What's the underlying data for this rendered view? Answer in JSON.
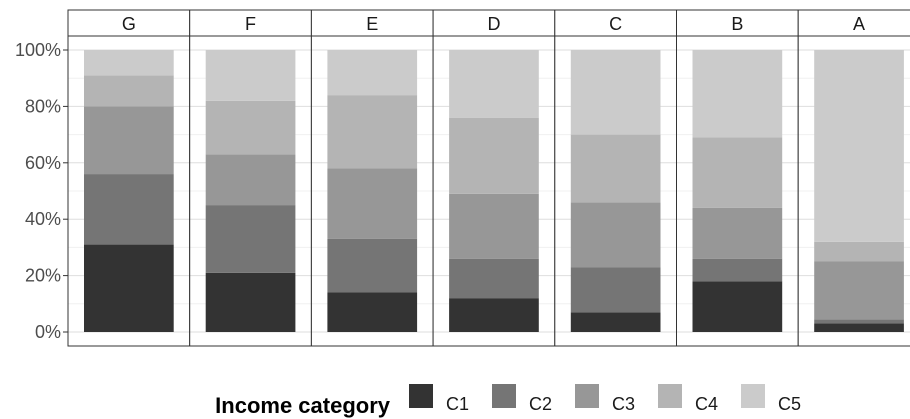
{
  "chart_data": {
    "type": "bar",
    "stacked": true,
    "facets": [
      "G",
      "F",
      "E",
      "D",
      "C",
      "B",
      "A"
    ],
    "y_ticks": [
      "0%",
      "20%",
      "40%",
      "60%",
      "80%",
      "100%"
    ],
    "ylim": [
      0,
      100
    ],
    "grid": true,
    "legend": {
      "title": "Income category",
      "placement": "bottom"
    },
    "series": [
      {
        "name": "C1",
        "color": "#333333",
        "values": [
          31,
          21,
          14,
          12,
          7,
          18,
          3
        ]
      },
      {
        "name": "C2",
        "color": "#757575",
        "values": [
          25,
          24,
          19,
          14,
          16,
          8,
          1.5
        ]
      },
      {
        "name": "C3",
        "color": "#979797",
        "values": [
          24,
          18,
          25,
          23,
          23,
          18,
          20.5
        ]
      },
      {
        "name": "C4",
        "color": "#b4b4b4",
        "values": [
          11,
          19,
          26,
          27,
          24,
          25,
          7
        ]
      },
      {
        "name": "C5",
        "color": "#cbcbcb",
        "values": [
          9,
          18,
          16,
          24,
          30,
          31,
          68
        ]
      }
    ]
  }
}
